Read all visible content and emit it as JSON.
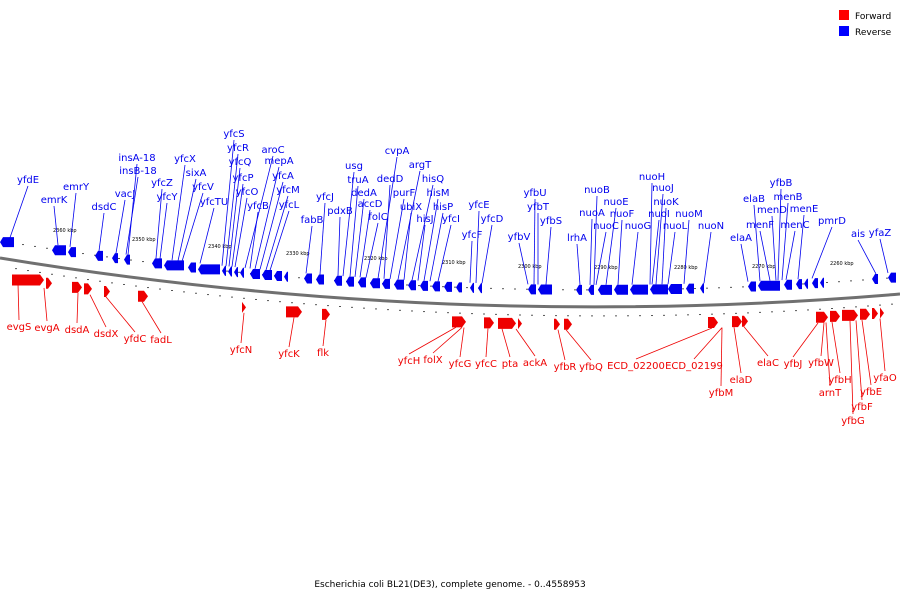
{
  "caption": "Escherichia coli BL21(DE3), complete genome. - 0..4558953",
  "legend": {
    "forward_label": "Forward",
    "reverse_label": "Reverse",
    "forward_color": "#ff0000",
    "reverse_color": "#0000ff"
  },
  "colors": {
    "forward": "#ee0000",
    "reverse": "#0000ee",
    "backbone": "#777777"
  },
  "ticks": [
    "2360 kbp",
    "2350 kbp",
    "2340 kbp",
    "2330 kbp",
    "2320 kbp",
    "2310 kbp",
    "2300 kbp",
    "2290 kbp",
    "2280 kbp",
    "2270 kbp",
    "2260 kbp"
  ],
  "reverse_genes": [
    "yfdE",
    "emrK",
    "emrY",
    "dsdC",
    "vacJ",
    "insB-18",
    "insA-18",
    "yfcZ",
    "yfcY",
    "yfcX",
    "sixA",
    "yfcV",
    "yfcTU",
    "yfcS",
    "yfcR",
    "yfcQ",
    "yfcP",
    "yfcO",
    "aroC",
    "yfcB",
    "mepA",
    "yfcA",
    "yfcM",
    "yfcL",
    "fabB",
    "yfcJ",
    "pdxB",
    "usg",
    "truA",
    "dedA",
    "accD",
    "folC",
    "cvpA",
    "dedD",
    "purF",
    "argT",
    "ubiX",
    "hisQ",
    "hisJ",
    "hisM",
    "hisP",
    "yfcI",
    "yfcF",
    "yfcE",
    "yfcD",
    "yfbV",
    "yfbU",
    "yfbT",
    "yfbS",
    "lrhA",
    "nuoA",
    "nuoB",
    "nuoC",
    "nuoE",
    "nuoF",
    "nuoG",
    "nuoH",
    "nuoI",
    "nuoJ",
    "nuoK",
    "nuoL",
    "nuoM",
    "nuoN",
    "elaA",
    "elaB",
    "menF",
    "menD",
    "yfbB",
    "menB",
    "menC",
    "menE",
    "pmrD",
    "ais",
    "yfaZ"
  ],
  "forward_genes": [
    "evgS",
    "evgA",
    "dsdA",
    "dsdX",
    "yfdC",
    "fadL",
    "yfcN",
    "yfcK",
    "flk",
    "yfcH",
    "folX",
    "yfcG",
    "yfcC",
    "pta",
    "ackA",
    "yfbR",
    "yfbQ",
    "ECD_02200",
    "ECD_02199",
    "yfbM",
    "elaD",
    "elaC",
    "yfbJ",
    "yfbW",
    "arnT",
    "yfbH",
    "yfbG",
    "yfbF",
    "yfbE",
    "yfaO"
  ]
}
